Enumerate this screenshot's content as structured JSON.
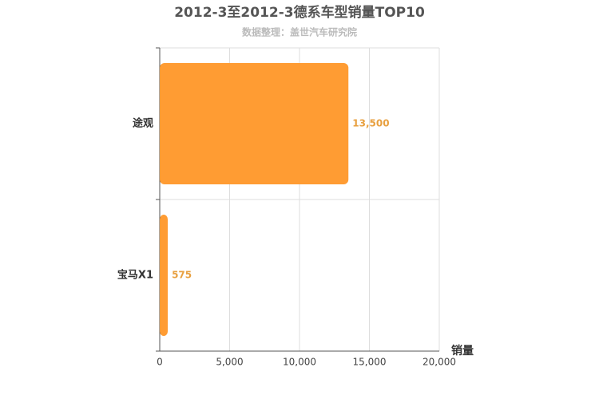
{
  "chart_data": {
    "type": "bar",
    "orientation": "horizontal",
    "title": "2012-3至2012-3德系车型销量TOP10",
    "subtitle": "数据整理：盖世汽车研究院",
    "categories": [
      "途观",
      "宝马X1"
    ],
    "values": [
      13500,
      575
    ],
    "value_labels": [
      "13,500",
      "575"
    ],
    "color": "#ff9c33",
    "xlabel": "销量",
    "xlim": [
      0,
      20000
    ],
    "xticks": [
      0,
      {
        "value": 5000,
        "label": "5,000"
      },
      {
        "value": 10000,
        "label": "10,000"
      },
      {
        "value": 15000,
        "label": "15,000"
      },
      {
        "value": 20000,
        "label": "20,000"
      }
    ],
    "grid": true
  }
}
